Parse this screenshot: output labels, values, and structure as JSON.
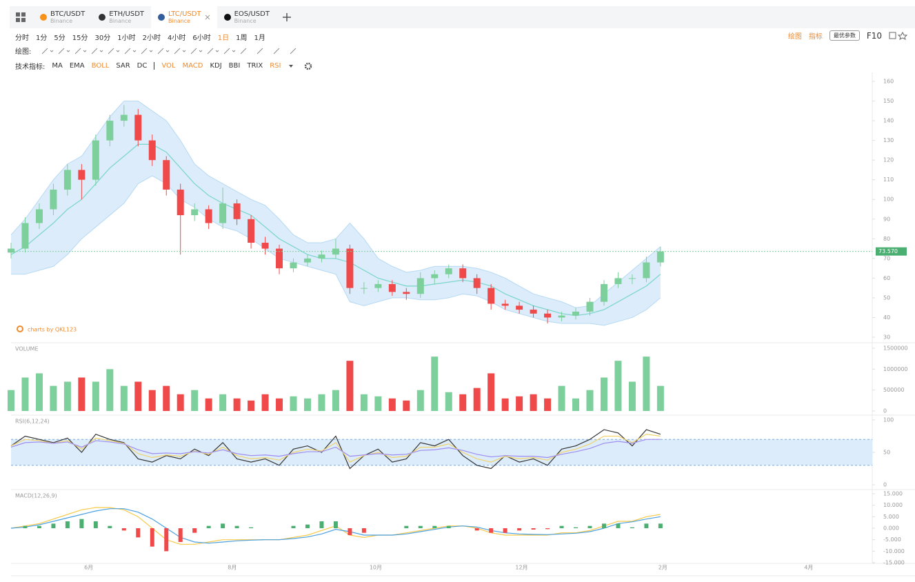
{
  "tabs": [
    {
      "pair": "BTC/USDT",
      "exchange": "Binance",
      "icon_color": "#f7931a",
      "active": false
    },
    {
      "pair": "ETH/USDT",
      "exchange": "Binance",
      "icon_color": "#333333",
      "active": false
    },
    {
      "pair": "LTC/USDT",
      "exchange": "Binance",
      "icon_color": "#345d9d",
      "active": true
    },
    {
      "pair": "EOS/USDT",
      "exchange": "Binance",
      "icon_color": "#111111",
      "active": false
    }
  ],
  "timeframes": {
    "items": [
      "分时",
      "1分",
      "5分",
      "15分",
      "30分",
      "1小时",
      "2小时",
      "4小时",
      "6小时",
      "1日",
      "1周",
      "1月"
    ],
    "active": 9
  },
  "toolbar_right": {
    "draw": "绘图",
    "indicators": "指标",
    "best_params": "最优参数",
    "f10": "F10"
  },
  "drawing_label": "绘图:",
  "indicators": {
    "label": "技术指标:",
    "items": [
      "MA",
      "EMA",
      "BOLL",
      "SAR",
      "DC",
      "VOL",
      "MACD",
      "KDJ",
      "BBI",
      "TRIX",
      "RSI"
    ],
    "active": [
      2,
      5,
      6,
      10
    ],
    "separator_after": 4
  },
  "chart_data": [
    {
      "type": "candlestick",
      "watermark": "charts by QKL123",
      "last_price_label": "73.570",
      "up_color": "#7dcf9b",
      "down_color": "#f0494a",
      "xlim": [
        0,
        366
      ],
      "x": [
        0,
        6,
        12,
        18,
        24,
        30,
        36,
        42,
        48,
        54,
        60,
        66,
        72,
        78,
        84,
        90,
        96,
        102,
        108,
        114,
        120,
        126,
        132,
        138,
        144,
        150,
        156,
        162,
        168,
        174,
        180,
        186,
        192,
        198,
        204,
        210,
        216,
        222,
        228,
        234,
        240,
        246,
        252,
        258,
        264,
        270,
        276
      ],
      "open": [
        73,
        75,
        88,
        95,
        105,
        115,
        110,
        130,
        140,
        143,
        130,
        120,
        105,
        92,
        95,
        88,
        98,
        90,
        78,
        75,
        65,
        68,
        70,
        72,
        75,
        55,
        55,
        57,
        53,
        52,
        60,
        62,
        65,
        60,
        55,
        47,
        46,
        44,
        42,
        40,
        41,
        43,
        48,
        57,
        60,
        60,
        68
      ],
      "high": [
        78,
        91,
        98,
        108,
        118,
        118,
        133,
        143,
        148,
        146,
        133,
        122,
        108,
        98,
        97,
        106,
        100,
        92,
        81,
        77,
        70,
        72,
        74,
        80,
        77,
        58,
        59,
        59,
        55,
        63,
        64,
        67,
        67,
        62,
        57,
        49,
        48,
        46,
        44,
        43,
        45,
        50,
        59,
        63,
        62,
        71,
        76
      ],
      "low": [
        70,
        73,
        85,
        92,
        102,
        100,
        107,
        127,
        137,
        127,
        117,
        102,
        72,
        89,
        85,
        85,
        87,
        75,
        72,
        62,
        63,
        66,
        68,
        70,
        52,
        52,
        53,
        51,
        49,
        50,
        57,
        60,
        58,
        52,
        44,
        44,
        42,
        40,
        37,
        38,
        39,
        41,
        46,
        55,
        57,
        58,
        66
      ],
      "close": [
        75,
        88,
        95,
        105,
        115,
        110,
        130,
        140,
        143,
        130,
        120,
        105,
        92,
        95,
        88,
        98,
        90,
        78,
        75,
        65,
        68,
        70,
        72,
        75,
        55,
        55,
        57,
        53,
        52,
        60,
        62,
        65,
        60,
        55,
        47,
        46,
        44,
        42,
        40,
        41,
        43,
        48,
        57,
        60,
        60,
        68,
        73.57
      ],
      "series": [
        {
          "role": "upper",
          "color": "#b5d9f3",
          "values": [
            82,
            90,
            100,
            110,
            118,
            122,
            132,
            142,
            150,
            150,
            145,
            140,
            130,
            118,
            112,
            108,
            104,
            100,
            97,
            90,
            82,
            78,
            78,
            80,
            88,
            80,
            70,
            66,
            63,
            64,
            66,
            66,
            66,
            65,
            63,
            60,
            56,
            52,
            50,
            48,
            45,
            46,
            52,
            58,
            64,
            70,
            76
          ]
        },
        {
          "role": "mid",
          "color": "#7fd6cc",
          "values": [
            72,
            76,
            82,
            88,
            95,
            100,
            108,
            116,
            122,
            128,
            128,
            124,
            116,
            108,
            102,
            98,
            95,
            92,
            86,
            80,
            76,
            72,
            70,
            70,
            68,
            64,
            60,
            58,
            56,
            56,
            57,
            58,
            59,
            58,
            56,
            52,
            49,
            46,
            44,
            42,
            41,
            42,
            44,
            48,
            52,
            56,
            62
          ]
        },
        {
          "role": "lower",
          "color": "#b5d9f3",
          "values": [
            62,
            62,
            64,
            66,
            72,
            80,
            86,
            92,
            98,
            108,
            112,
            108,
            100,
            96,
            90,
            86,
            84,
            80,
            75,
            70,
            68,
            66,
            64,
            62,
            48,
            46,
            48,
            50,
            50,
            49,
            49,
            50,
            52,
            51,
            48,
            44,
            42,
            40,
            38,
            37,
            37,
            37,
            36,
            38,
            40,
            44,
            50
          ]
        }
      ],
      "band_color": "#dcecfb",
      "ylim": [
        30,
        160
      ],
      "yticks": [
        30,
        40,
        50,
        60,
        70,
        80,
        90,
        100,
        110,
        120,
        130,
        140,
        150,
        160
      ]
    },
    {
      "type": "bar",
      "title": "VOLUME",
      "values": [
        500000,
        800000,
        900000,
        600000,
        700000,
        800000,
        700000,
        1000000,
        600000,
        700000,
        500000,
        600000,
        400000,
        500000,
        300000,
        400000,
        300000,
        250000,
        400000,
        300000,
        350000,
        300000,
        400000,
        500000,
        1200000,
        400000,
        350000,
        300000,
        250000,
        500000,
        1300000,
        450000,
        400000,
        550000,
        900000,
        300000,
        350000,
        400000,
        300000,
        600000,
        300000,
        500000,
        800000,
        1200000,
        700000,
        1300000,
        600000
      ],
      "ylim": [
        0,
        1500000
      ],
      "yticks": [
        0,
        500000,
        1000000,
        1500000
      ]
    },
    {
      "type": "line",
      "title": "RSI(6,12,24)",
      "band": [
        30,
        70
      ],
      "band_color": "#dcecfb",
      "series": [
        {
          "color": "#333333",
          "values": [
            60,
            75,
            70,
            65,
            72,
            50,
            78,
            70,
            65,
            40,
            35,
            45,
            40,
            55,
            45,
            65,
            40,
            35,
            40,
            30,
            55,
            60,
            50,
            75,
            25,
            45,
            55,
            35,
            40,
            65,
            60,
            70,
            45,
            30,
            25,
            45,
            35,
            40,
            30,
            55,
            60,
            70,
            85,
            80,
            60,
            85,
            78
          ]
        },
        {
          "color": "#f2d36b",
          "values": [
            60,
            70,
            68,
            64,
            68,
            55,
            72,
            68,
            64,
            48,
            42,
            46,
            44,
            52,
            47,
            58,
            45,
            40,
            42,
            38,
            50,
            55,
            52,
            65,
            35,
            45,
            50,
            42,
            44,
            58,
            58,
            63,
            50,
            40,
            35,
            44,
            40,
            42,
            38,
            50,
            55,
            63,
            75,
            75,
            65,
            78,
            75
          ]
        },
        {
          "color": "#9d8cf0",
          "values": [
            58,
            65,
            66,
            64,
            66,
            58,
            68,
            66,
            63,
            54,
            48,
            49,
            48,
            51,
            49,
            54,
            48,
            45,
            46,
            44,
            48,
            51,
            51,
            58,
            44,
            46,
            48,
            46,
            47,
            53,
            54,
            57,
            53,
            47,
            43,
            45,
            44,
            44,
            42,
            47,
            51,
            56,
            64,
            67,
            64,
            70,
            70
          ]
        }
      ],
      "ylim": [
        0,
        100
      ],
      "yticks": [
        0,
        50,
        100
      ]
    },
    {
      "type": "line",
      "title": "MACD(12,26,9)",
      "series": [
        {
          "color": "#f7c948",
          "values": [
            0,
            1,
            2,
            4,
            6,
            8,
            9,
            9,
            8,
            5,
            0,
            -5,
            -7,
            -7,
            -6,
            -5,
            -5,
            -5,
            -5,
            -5,
            -4,
            -3,
            -1,
            1,
            -3,
            -4,
            -3,
            -3,
            -2,
            -1,
            0,
            1,
            1,
            0,
            -2,
            -3,
            -3,
            -3,
            -3,
            -2,
            -2,
            -1,
            1,
            3,
            3,
            5,
            6
          ]
        },
        {
          "color": "#4a9fe0",
          "values": [
            0,
            0.5,
            1.5,
            3,
            4.5,
            6,
            7.5,
            8.5,
            8.5,
            7,
            4,
            0,
            -4,
            -6,
            -6.5,
            -6,
            -5.5,
            -5.2,
            -5,
            -5,
            -4.5,
            -3.8,
            -2.5,
            -0.5,
            -1.5,
            -3,
            -3,
            -3,
            -2.5,
            -1.5,
            -0.5,
            0.5,
            1,
            0.5,
            -1,
            -2,
            -2.5,
            -2.7,
            -2.8,
            -2.5,
            -2.2,
            -1.5,
            0,
            2,
            2.8,
            4,
            5
          ]
        },
        {
          "type": "bar",
          "up_color": "#4caf72",
          "down_color": "#f0494a",
          "values": [
            0,
            1,
            1,
            2,
            3,
            4,
            3,
            1,
            -1,
            -4,
            -8,
            -10,
            -6,
            -2,
            1,
            2,
            1,
            0.4,
            0,
            0,
            1,
            1.6,
            3,
            3,
            -3,
            -2,
            0,
            0,
            1,
            1,
            1,
            1,
            0,
            -1,
            -2,
            -2,
            -1,
            -0.6,
            -0.4,
            1,
            0.4,
            1,
            2,
            2,
            0.4,
            2,
            2
          ]
        }
      ],
      "ylim": [
        -15,
        15
      ],
      "yticks": [
        {
          "value": 15,
          "label": "15.000"
        },
        {
          "value": 10,
          "label": "10.000"
        },
        {
          "value": 5,
          "label": "5.000"
        },
        {
          "value": 0,
          "label": "0.000"
        },
        {
          "value": -5,
          "label": "-5.000"
        },
        {
          "value": -10,
          "label": "-10.000"
        },
        {
          "value": -15,
          "label": "-15.000"
        }
      ],
      "xticks": [
        {
          "value": 33,
          "label": "6月"
        },
        {
          "value": 94,
          "label": "8月"
        },
        {
          "value": 155,
          "label": "10月"
        },
        {
          "value": 217,
          "label": "12月"
        },
        {
          "value": 277,
          "label": "2月"
        },
        {
          "value": 339,
          "label": "4月"
        }
      ]
    }
  ]
}
